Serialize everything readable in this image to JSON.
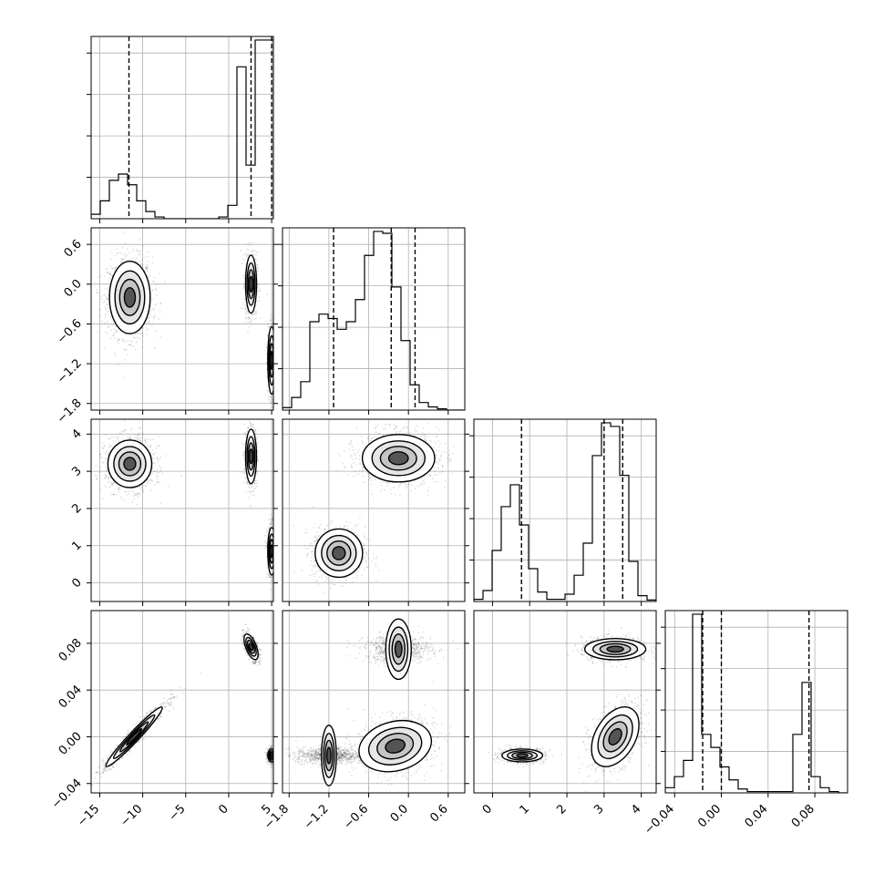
{
  "chart_data": {
    "type": "corner",
    "title": "",
    "grid": true,
    "parameters": [
      {
        "id": "p0",
        "range": [
          -16,
          5.2
        ],
        "ticks": [
          -15,
          -10,
          -5,
          0,
          5
        ],
        "tick_labels": [
          "−15",
          "−10",
          "−5",
          "0",
          "5"
        ],
        "quantiles": [
          -11.6,
          2.6,
          5.0
        ]
      },
      {
        "id": "p1",
        "range": [
          -1.9,
          0.85
        ],
        "ticks": [
          -1.8,
          -1.2,
          -0.6,
          0.0,
          0.6
        ],
        "tick_labels": [
          "−1.8",
          "−1.2",
          "−0.6",
          "0.0",
          "0.6"
        ],
        "quantiles": [
          -1.13,
          -0.26,
          0.1
        ]
      },
      {
        "id": "p2",
        "range": [
          -0.5,
          4.4
        ],
        "ticks": [
          0,
          1,
          2,
          3,
          4
        ],
        "tick_labels": [
          "0",
          "1",
          "2",
          "3",
          "4"
        ],
        "quantiles": [
          0.78,
          3.0,
          3.5
        ]
      },
      {
        "id": "p3",
        "range": [
          -0.048,
          0.108
        ],
        "ticks": [
          -0.04,
          0.0,
          0.04,
          0.08
        ],
        "tick_labels": [
          "−0.04",
          "0.00",
          "0.04",
          "0.08"
        ],
        "quantiles": [
          -0.016,
          0.0,
          0.075
        ]
      }
    ],
    "histograms": [
      {
        "param": 0,
        "edges_start": -16,
        "bin_width": 1.06,
        "counts": [
          0.05,
          0.2,
          0.43,
          0.5,
          0.38,
          0.2,
          0.08,
          0.02,
          0,
          0,
          0,
          0,
          0,
          0,
          0.02,
          0.15,
          1.7,
          0.6,
          2.0,
          2.0
        ]
      },
      {
        "param": 1,
        "edges_start": -1.9,
        "bin_width": 0.1375,
        "counts": [
          0.04,
          0.2,
          0.45,
          1.4,
          1.52,
          1.45,
          1.28,
          1.4,
          1.75,
          2.45,
          2.83,
          2.8,
          1.95,
          1.1,
          0.4,
          0.12,
          0.05,
          0.02,
          0,
          0
        ]
      },
      {
        "param": 2,
        "edges_start": -0.5,
        "bin_width": 0.245,
        "counts": [
          0.03,
          0.15,
          0.7,
          1.3,
          1.6,
          1.05,
          0.45,
          0.13,
          0.03,
          0.03,
          0.1,
          0.36,
          0.8,
          2.0,
          2.45,
          2.4,
          1.73,
          0.55,
          0.08,
          0.02
        ]
      },
      {
        "param": 3,
        "edges_start": -0.048,
        "bin_width": 0.0078,
        "counts": [
          0.08,
          0.25,
          0.5,
          2.75,
          0.9,
          0.7,
          0.4,
          0.2,
          0.06,
          0.02,
          0.02,
          0.02,
          0.02,
          0.02,
          0.9,
          1.7,
          0.25,
          0.08,
          0.02,
          0
        ]
      }
    ],
    "scatter_clusters": [
      {
        "x_param": 0,
        "y_param": 1,
        "clusters": [
          {
            "cx": -11.5,
            "cy": -0.2,
            "sx": 1.3,
            "sy": 0.3,
            "rho": 0.0,
            "n": 1300
          },
          {
            "cx": 2.6,
            "cy": 0.0,
            "sx": 0.35,
            "sy": 0.24,
            "rho": 0.0,
            "n": 700
          },
          {
            "cx": 5.0,
            "cy": -1.15,
            "sx": 0.25,
            "sy": 0.28,
            "rho": 0.0,
            "n": 600
          }
        ]
      },
      {
        "x_param": 0,
        "y_param": 2,
        "clusters": [
          {
            "cx": -11.5,
            "cy": 3.2,
            "sx": 1.4,
            "sy": 0.35,
            "rho": 0.0,
            "n": 1300
          },
          {
            "cx": 2.6,
            "cy": 3.4,
            "sx": 0.35,
            "sy": 0.4,
            "rho": 0.0,
            "n": 700
          },
          {
            "cx": 5.0,
            "cy": 0.85,
            "sx": 0.25,
            "sy": 0.35,
            "rho": 0.0,
            "n": 600
          }
        ]
      },
      {
        "x_param": 0,
        "y_param": 3,
        "clusters": [
          {
            "cx": -11.0,
            "cy": 0.0,
            "sx": 1.8,
            "sy": 0.014,
            "rho": 0.97,
            "n": 1300
          },
          {
            "cx": 2.6,
            "cy": 0.077,
            "sx": 0.45,
            "sy": 0.006,
            "rho": -0.6,
            "n": 700
          },
          {
            "cx": 5.0,
            "cy": -0.016,
            "sx": 0.25,
            "sy": 0.003,
            "rho": 0.0,
            "n": 600
          }
        ]
      },
      {
        "x_param": 1,
        "y_param": 2,
        "clusters": [
          {
            "cx": -0.15,
            "cy": 3.35,
            "sx": 0.3,
            "sy": 0.35,
            "rho": 0.0,
            "n": 1300
          },
          {
            "cx": -1.05,
            "cy": 0.8,
            "sx": 0.2,
            "sy": 0.35,
            "rho": 0.0,
            "n": 900
          }
        ]
      },
      {
        "x_param": 1,
        "y_param": 3,
        "clusters": [
          {
            "cx": -0.15,
            "cy": 0.075,
            "sx": 0.25,
            "sy": 0.006,
            "rho": 0.0,
            "n": 800
          },
          {
            "cx": -0.2,
            "cy": -0.008,
            "sx": 0.3,
            "sy": 0.012,
            "rho": 0.2,
            "n": 1000
          },
          {
            "cx": -1.2,
            "cy": -0.016,
            "sx": 0.25,
            "sy": 0.0035,
            "rho": 0.0,
            "n": 800
          }
        ]
      },
      {
        "x_param": 2,
        "y_param": 3,
        "clusters": [
          {
            "cx": 3.3,
            "cy": 0.075,
            "sx": 0.45,
            "sy": 0.005,
            "rho": 0.0,
            "n": 900
          },
          {
            "cx": 3.3,
            "cy": 0.0,
            "sx": 0.35,
            "sy": 0.014,
            "rho": 0.4,
            "n": 900
          },
          {
            "cx": 0.8,
            "cy": -0.016,
            "sx": 0.3,
            "sy": 0.003,
            "rho": 0.0,
            "n": 800
          }
        ]
      }
    ],
    "contour_levels": [
      {
        "k": 1.3,
        "fill": "#ffffff"
      },
      {
        "k": 0.95,
        "fill": "#e6e6e6"
      },
      {
        "k": 0.65,
        "fill": "#c4c4c4"
      },
      {
        "k": 0.35,
        "fill": "#555555"
      }
    ],
    "colors": {
      "points": "#000000",
      "lines": "#000000",
      "grid": "#b0b0b0"
    }
  }
}
